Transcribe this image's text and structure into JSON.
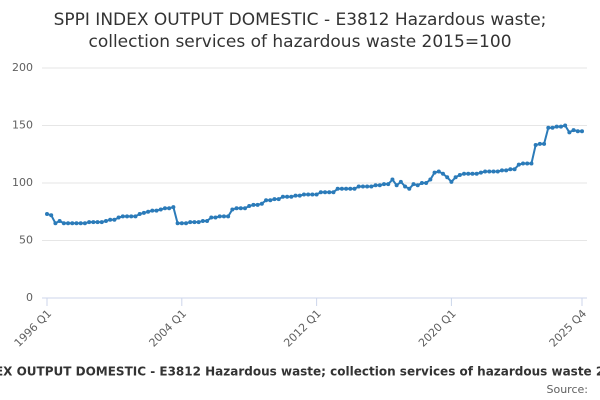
{
  "chart_data": {
    "type": "line",
    "title": [
      "SPPI INDEX OUTPUT DOMESTIC - E3812 Hazardous waste;",
      "collection services of hazardous waste 2015=100"
    ],
    "categories": [
      "1996 Q1",
      null,
      null,
      null,
      null,
      null,
      null,
      null,
      null,
      null,
      null,
      null,
      null,
      null,
      null,
      null,
      null,
      null,
      null,
      null,
      null,
      null,
      null,
      null,
      null,
      null,
      null,
      null,
      null,
      null,
      null,
      null,
      "2004 Q1",
      null,
      null,
      null,
      null,
      null,
      null,
      null,
      null,
      null,
      null,
      null,
      null,
      null,
      null,
      null,
      null,
      null,
      null,
      null,
      null,
      null,
      null,
      null,
      null,
      null,
      null,
      null,
      null,
      null,
      null,
      null,
      "2012 Q1",
      null,
      null,
      null,
      null,
      null,
      null,
      null,
      null,
      null,
      null,
      null,
      null,
      null,
      null,
      null,
      null,
      null,
      null,
      null,
      null,
      null,
      null,
      null,
      null,
      null,
      null,
      null,
      null,
      null,
      null,
      null,
      "2020 Q1",
      null,
      null,
      null,
      null,
      null,
      null,
      null,
      null,
      null,
      null,
      null,
      null,
      null,
      null,
      null,
      null,
      null,
      null,
      null,
      null,
      null,
      null,
      null,
      null,
      null,
      null,
      null,
      null,
      null,
      null,
      "2025 Q4"
    ],
    "series": [
      {
        "name": "SPPI INDEX OUTPUT DOMESTIC - E3812 Hazardous waste; collection services of hazardous waste 2015=100",
        "color": "#2b7bb9",
        "values": [
          73,
          72,
          65,
          67,
          65,
          65,
          65,
          65,
          65,
          65,
          66,
          66,
          66,
          66,
          67,
          68,
          68,
          70,
          71,
          71,
          71,
          71,
          73,
          74,
          75,
          76,
          76,
          77,
          78,
          78,
          79,
          65,
          65,
          65,
          66,
          66,
          66,
          67,
          67,
          70,
          70,
          71,
          71,
          71,
          77,
          78,
          78,
          78,
          80,
          81,
          81,
          82,
          85,
          85,
          86,
          86,
          88,
          88,
          88,
          89,
          89,
          90,
          90,
          90,
          90,
          92,
          92,
          92,
          92,
          95,
          95,
          95,
          95,
          95,
          97,
          97,
          97,
          97,
          98,
          98,
          99,
          99,
          103,
          98,
          101,
          97,
          95,
          99,
          98,
          100,
          100,
          103,
          109,
          110,
          108,
          105,
          101,
          105,
          107,
          108,
          108,
          108,
          108,
          109,
          110,
          110,
          110,
          110,
          111,
          111,
          112,
          112,
          116,
          117,
          117,
          117,
          133,
          134,
          134,
          148,
          148,
          149,
          149,
          150,
          144,
          146,
          145,
          145
        ]
      }
    ],
    "ylim": [
      0,
      200
    ],
    "yticks": [
      0,
      50,
      100,
      150,
      200
    ],
    "grid": true,
    "credit": "Source:"
  }
}
